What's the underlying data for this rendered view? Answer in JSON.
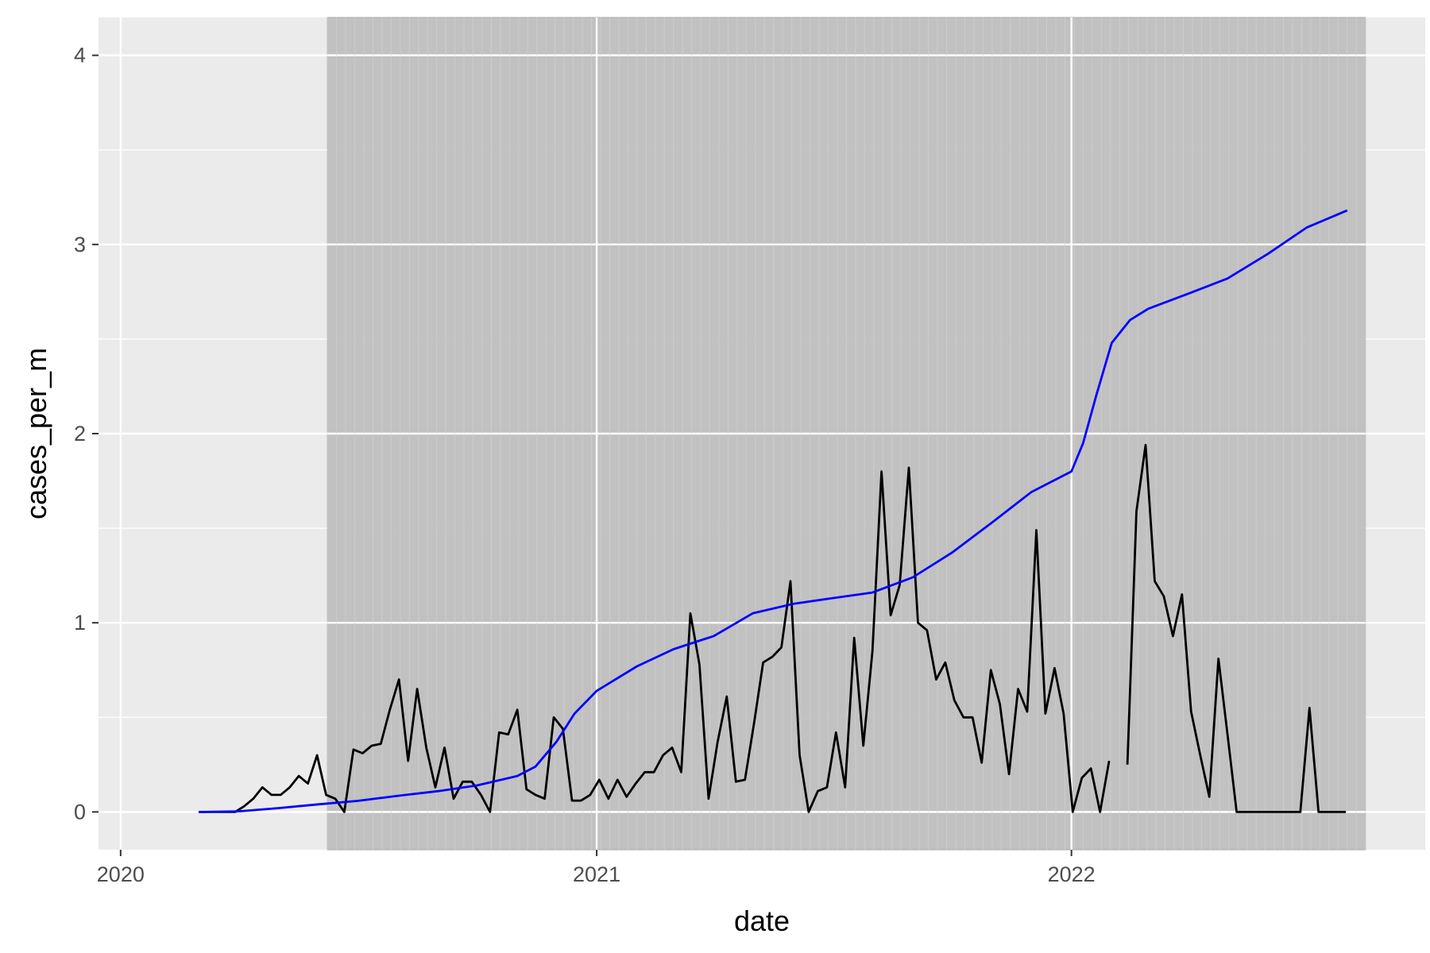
{
  "chart_data": {
    "type": "line",
    "title": "",
    "xlabel": "date",
    "ylabel": "cases_per_m",
    "x_ticks": [
      "2020",
      "2021",
      "2022"
    ],
    "y_ticks": [
      "0",
      "1",
      "2",
      "3",
      "4"
    ],
    "xlim": [
      "2019-12-15",
      "2022-09-30"
    ],
    "ylim": [
      -0.2,
      4.2
    ],
    "grid": true,
    "legend": "none",
    "shaded_region": {
      "start": "2020-06-08",
      "end": "2022-08-15",
      "color": "#bdbdbd"
    },
    "panel_background": "#ebebeb",
    "series": [
      {
        "color": "#000000",
        "points": [
          [
            "2020-03-01",
            0
          ],
          [
            "2020-03-08",
            0
          ],
          [
            "2020-03-15",
            0
          ],
          [
            "2020-03-22",
            0
          ],
          [
            "2020-03-29",
            0
          ],
          [
            "2020-04-05",
            0.03
          ],
          [
            "2020-04-12",
            0.07
          ],
          [
            "2020-04-19",
            0.13
          ],
          [
            "2020-04-26",
            0.09
          ],
          [
            "2020-05-03",
            0.09
          ],
          [
            "2020-05-10",
            0.13
          ],
          [
            "2020-05-17",
            0.19
          ],
          [
            "2020-05-24",
            0.15
          ],
          [
            "2020-05-31",
            0.3
          ],
          [
            "2020-06-07",
            0.09
          ],
          [
            "2020-06-14",
            0.07
          ],
          [
            "2020-06-21",
            0
          ],
          [
            "2020-06-28",
            0.33
          ],
          [
            "2020-07-05",
            0.31
          ],
          [
            "2020-07-12",
            0.35
          ],
          [
            "2020-07-19",
            0.36
          ],
          [
            "2020-07-26",
            0.54
          ],
          [
            "2020-08-02",
            0.7
          ],
          [
            "2020-08-09",
            0.27
          ],
          [
            "2020-08-16",
            0.65
          ],
          [
            "2020-08-23",
            0.34
          ],
          [
            "2020-08-30",
            0.13
          ],
          [
            "2020-09-06",
            0.34
          ],
          [
            "2020-09-13",
            0.07
          ],
          [
            "2020-09-20",
            0.16
          ],
          [
            "2020-09-27",
            0.16
          ],
          [
            "2020-10-04",
            0.09
          ],
          [
            "2020-10-11",
            0
          ],
          [
            "2020-10-18",
            0.42
          ],
          [
            "2020-10-25",
            0.41
          ],
          [
            "2020-11-01",
            0.54
          ],
          [
            "2020-11-08",
            0.12
          ],
          [
            "2020-11-15",
            0.09
          ],
          [
            "2020-11-22",
            0.07
          ],
          [
            "2020-11-29",
            0.5
          ],
          [
            "2020-12-06",
            0.44
          ],
          [
            "2020-12-13",
            0.06
          ],
          [
            "2020-12-20",
            0.06
          ],
          [
            "2020-12-27",
            0.09
          ],
          [
            "2021-01-03",
            0.17
          ],
          [
            "2021-01-10",
            0.07
          ],
          [
            "2021-01-17",
            0.17
          ],
          [
            "2021-01-24",
            0.08
          ],
          [
            "2021-01-31",
            0.15
          ],
          [
            "2021-02-07",
            0.21
          ],
          [
            "2021-02-14",
            0.21
          ],
          [
            "2021-02-21",
            0.3
          ],
          [
            "2021-02-28",
            0.34
          ],
          [
            "2021-03-07",
            0.21
          ],
          [
            "2021-03-14",
            1.05
          ],
          [
            "2021-03-21",
            0.78
          ],
          [
            "2021-03-28",
            0.07
          ],
          [
            "2021-04-04",
            0.37
          ],
          [
            "2021-04-11",
            0.61
          ],
          [
            "2021-04-18",
            0.16
          ],
          [
            "2021-04-25",
            0.17
          ],
          [
            "2021-05-02",
            0.47
          ],
          [
            "2021-05-09",
            0.79
          ],
          [
            "2021-05-16",
            0.82
          ],
          [
            "2021-05-23",
            0.87
          ],
          [
            "2021-05-30",
            1.22
          ],
          [
            "2021-06-06",
            0.3
          ],
          [
            "2021-06-13",
            0
          ],
          [
            "2021-06-20",
            0.11
          ],
          [
            "2021-06-27",
            0.13
          ],
          [
            "2021-07-04",
            0.42
          ],
          [
            "2021-07-11",
            0.13
          ],
          [
            "2021-07-18",
            0.92
          ],
          [
            "2021-07-25",
            0.35
          ],
          [
            "2021-08-01",
            0.85
          ],
          [
            "2021-08-08",
            1.8
          ],
          [
            "2021-08-15",
            1.04
          ],
          [
            "2021-08-22",
            1.2
          ],
          [
            "2021-08-29",
            1.82
          ],
          [
            "2021-09-05",
            1
          ],
          [
            "2021-09-12",
            0.96
          ],
          [
            "2021-09-19",
            0.7
          ],
          [
            "2021-09-26",
            0.79
          ],
          [
            "2021-10-03",
            0.59
          ],
          [
            "2021-10-10",
            0.5
          ],
          [
            "2021-10-17",
            0.5
          ],
          [
            "2021-10-24",
            0.26
          ],
          [
            "2021-10-31",
            0.75
          ],
          [
            "2021-11-07",
            0.57
          ],
          [
            "2021-11-14",
            0.2
          ],
          [
            "2021-11-21",
            0.65
          ],
          [
            "2021-11-28",
            0.53
          ],
          [
            "2021-12-05",
            1.49
          ],
          [
            "2021-12-12",
            0.52
          ],
          [
            "2021-12-19",
            0.76
          ],
          [
            "2021-12-26",
            0.52
          ],
          [
            "2022-01-02",
            0
          ],
          [
            "2022-01-09",
            0.18
          ],
          [
            "2022-01-16",
            0.23
          ],
          [
            "2022-01-23",
            0
          ],
          [
            "2022-01-30",
            0.27
          ],
          null,
          [
            "2022-02-13",
            0.25
          ],
          [
            "2022-02-20",
            1.59
          ],
          [
            "2022-02-27",
            1.94
          ],
          [
            "2022-03-06",
            1.22
          ],
          [
            "2022-03-13",
            1.14
          ],
          [
            "2022-03-20",
            0.93
          ],
          [
            "2022-03-27",
            1.15
          ],
          [
            "2022-04-03",
            0.53
          ],
          [
            "2022-04-10",
            0.3
          ],
          [
            "2022-04-17",
            0.08
          ],
          [
            "2022-04-24",
            0.81
          ],
          [
            "2022-05-01",
            0.41
          ],
          [
            "2022-05-08",
            0
          ],
          [
            "2022-05-15",
            0
          ],
          [
            "2022-05-22",
            0
          ],
          [
            "2022-05-29",
            0
          ],
          [
            "2022-06-05",
            0
          ],
          [
            "2022-06-12",
            0
          ],
          [
            "2022-06-19",
            0
          ],
          [
            "2022-06-26",
            0
          ],
          [
            "2022-07-03",
            0.55
          ],
          [
            "2022-07-10",
            0
          ],
          [
            "2022-07-17",
            0
          ],
          [
            "2022-07-24",
            0
          ],
          [
            "2022-07-31",
            0
          ]
        ]
      },
      {
        "color": "#0000ff",
        "points": [
          [
            "2020-03-01",
            0
          ],
          [
            "2020-04-01",
            0.003
          ],
          [
            "2020-05-01",
            0.02
          ],
          [
            "2020-06-01",
            0.04
          ],
          [
            "2020-07-01",
            0.058
          ],
          [
            "2020-08-01",
            0.085
          ],
          [
            "2020-09-01",
            0.11
          ],
          [
            "2020-10-01",
            0.14
          ],
          [
            "2020-11-01",
            0.19
          ],
          [
            "2020-11-15",
            0.24
          ],
          [
            "2020-12-01",
            0.37
          ],
          [
            "2020-12-15",
            0.52
          ],
          [
            "2021-01-01",
            0.64
          ],
          [
            "2021-02-01",
            0.77
          ],
          [
            "2021-03-01",
            0.86
          ],
          [
            "2021-04-01",
            0.93
          ],
          [
            "2021-05-01",
            1.05
          ],
          [
            "2021-06-01",
            1.1
          ],
          [
            "2021-07-01",
            1.13
          ],
          [
            "2021-08-01",
            1.16
          ],
          [
            "2021-09-01",
            1.24
          ],
          [
            "2021-10-01",
            1.37
          ],
          [
            "2021-11-01",
            1.53
          ],
          [
            "2021-12-01",
            1.69
          ],
          [
            "2022-01-01",
            1.8
          ],
          [
            "2022-01-10",
            1.95
          ],
          [
            "2022-01-20",
            2.2
          ],
          [
            "2022-02-01",
            2.48
          ],
          [
            "2022-02-15",
            2.6
          ],
          [
            "2022-03-01",
            2.66
          ],
          [
            "2022-04-01",
            2.74
          ],
          [
            "2022-05-01",
            2.82
          ],
          [
            "2022-06-01",
            2.95
          ],
          [
            "2022-07-01",
            3.09
          ],
          [
            "2022-08-01",
            3.18
          ]
        ]
      }
    ]
  }
}
